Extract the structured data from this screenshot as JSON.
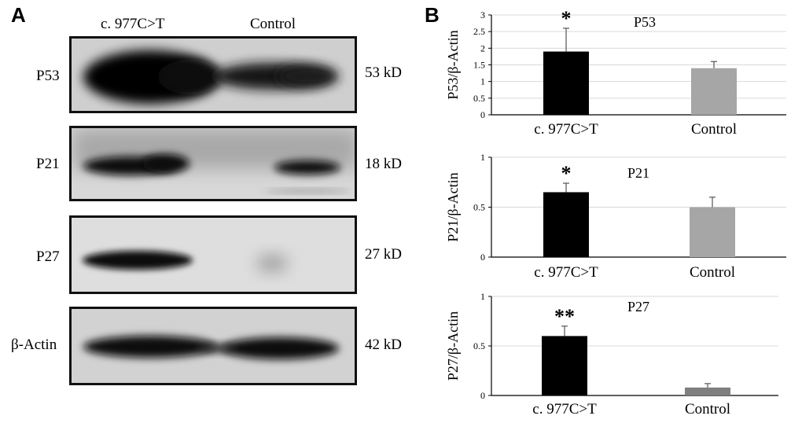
{
  "panel_a": {
    "letter": "A",
    "lanes": [
      "c. 977C>T",
      "Control"
    ],
    "blots": [
      {
        "protein": "P53",
        "kd": "53 kD"
      },
      {
        "protein": "P21",
        "kd": "18 kD"
      },
      {
        "protein": "P27",
        "kd": "27 kD"
      },
      {
        "protein": "β-Actin",
        "kd": "42 kD"
      }
    ]
  },
  "panel_b": {
    "letter": "B"
  },
  "chart_data": [
    {
      "type": "bar",
      "title": "P53",
      "ylabel": "P53/β-Actin",
      "categories": [
        "c. 977C>T",
        "Control"
      ],
      "values": [
        1.9,
        1.4
      ],
      "errors": [
        0.7,
        0.2
      ],
      "significance": [
        "*",
        ""
      ],
      "ylim": [
        0,
        3
      ],
      "yticks": [
        "0",
        "0.5",
        "1",
        "1.5",
        "2",
        "2.5",
        "3"
      ],
      "bar_colors": [
        "#000000",
        "#a6a6a6"
      ],
      "grid": true
    },
    {
      "type": "bar",
      "title": "P21",
      "ylabel": "P21/β-Actin",
      "categories": [
        "c. 977C>T",
        "Control"
      ],
      "values": [
        0.65,
        0.5
      ],
      "errors": [
        0.09,
        0.1
      ],
      "significance": [
        "*",
        ""
      ],
      "ylim": [
        0,
        1
      ],
      "yticks": [
        "0",
        "0.5",
        "1"
      ],
      "bar_colors": [
        "#000000",
        "#a6a6a6"
      ],
      "grid": true
    },
    {
      "type": "bar",
      "title": "P27",
      "ylabel": "P27/β-Actin",
      "categories": [
        "c. 977C>T",
        "Control"
      ],
      "values": [
        0.6,
        0.08
      ],
      "errors": [
        0.1,
        0.04
      ],
      "significance": [
        "**",
        ""
      ],
      "ylim": [
        0,
        1
      ],
      "yticks": [
        "0",
        "0.5",
        "1"
      ],
      "bar_colors": [
        "#000000",
        "#7f7f7f"
      ],
      "grid": true
    }
  ]
}
